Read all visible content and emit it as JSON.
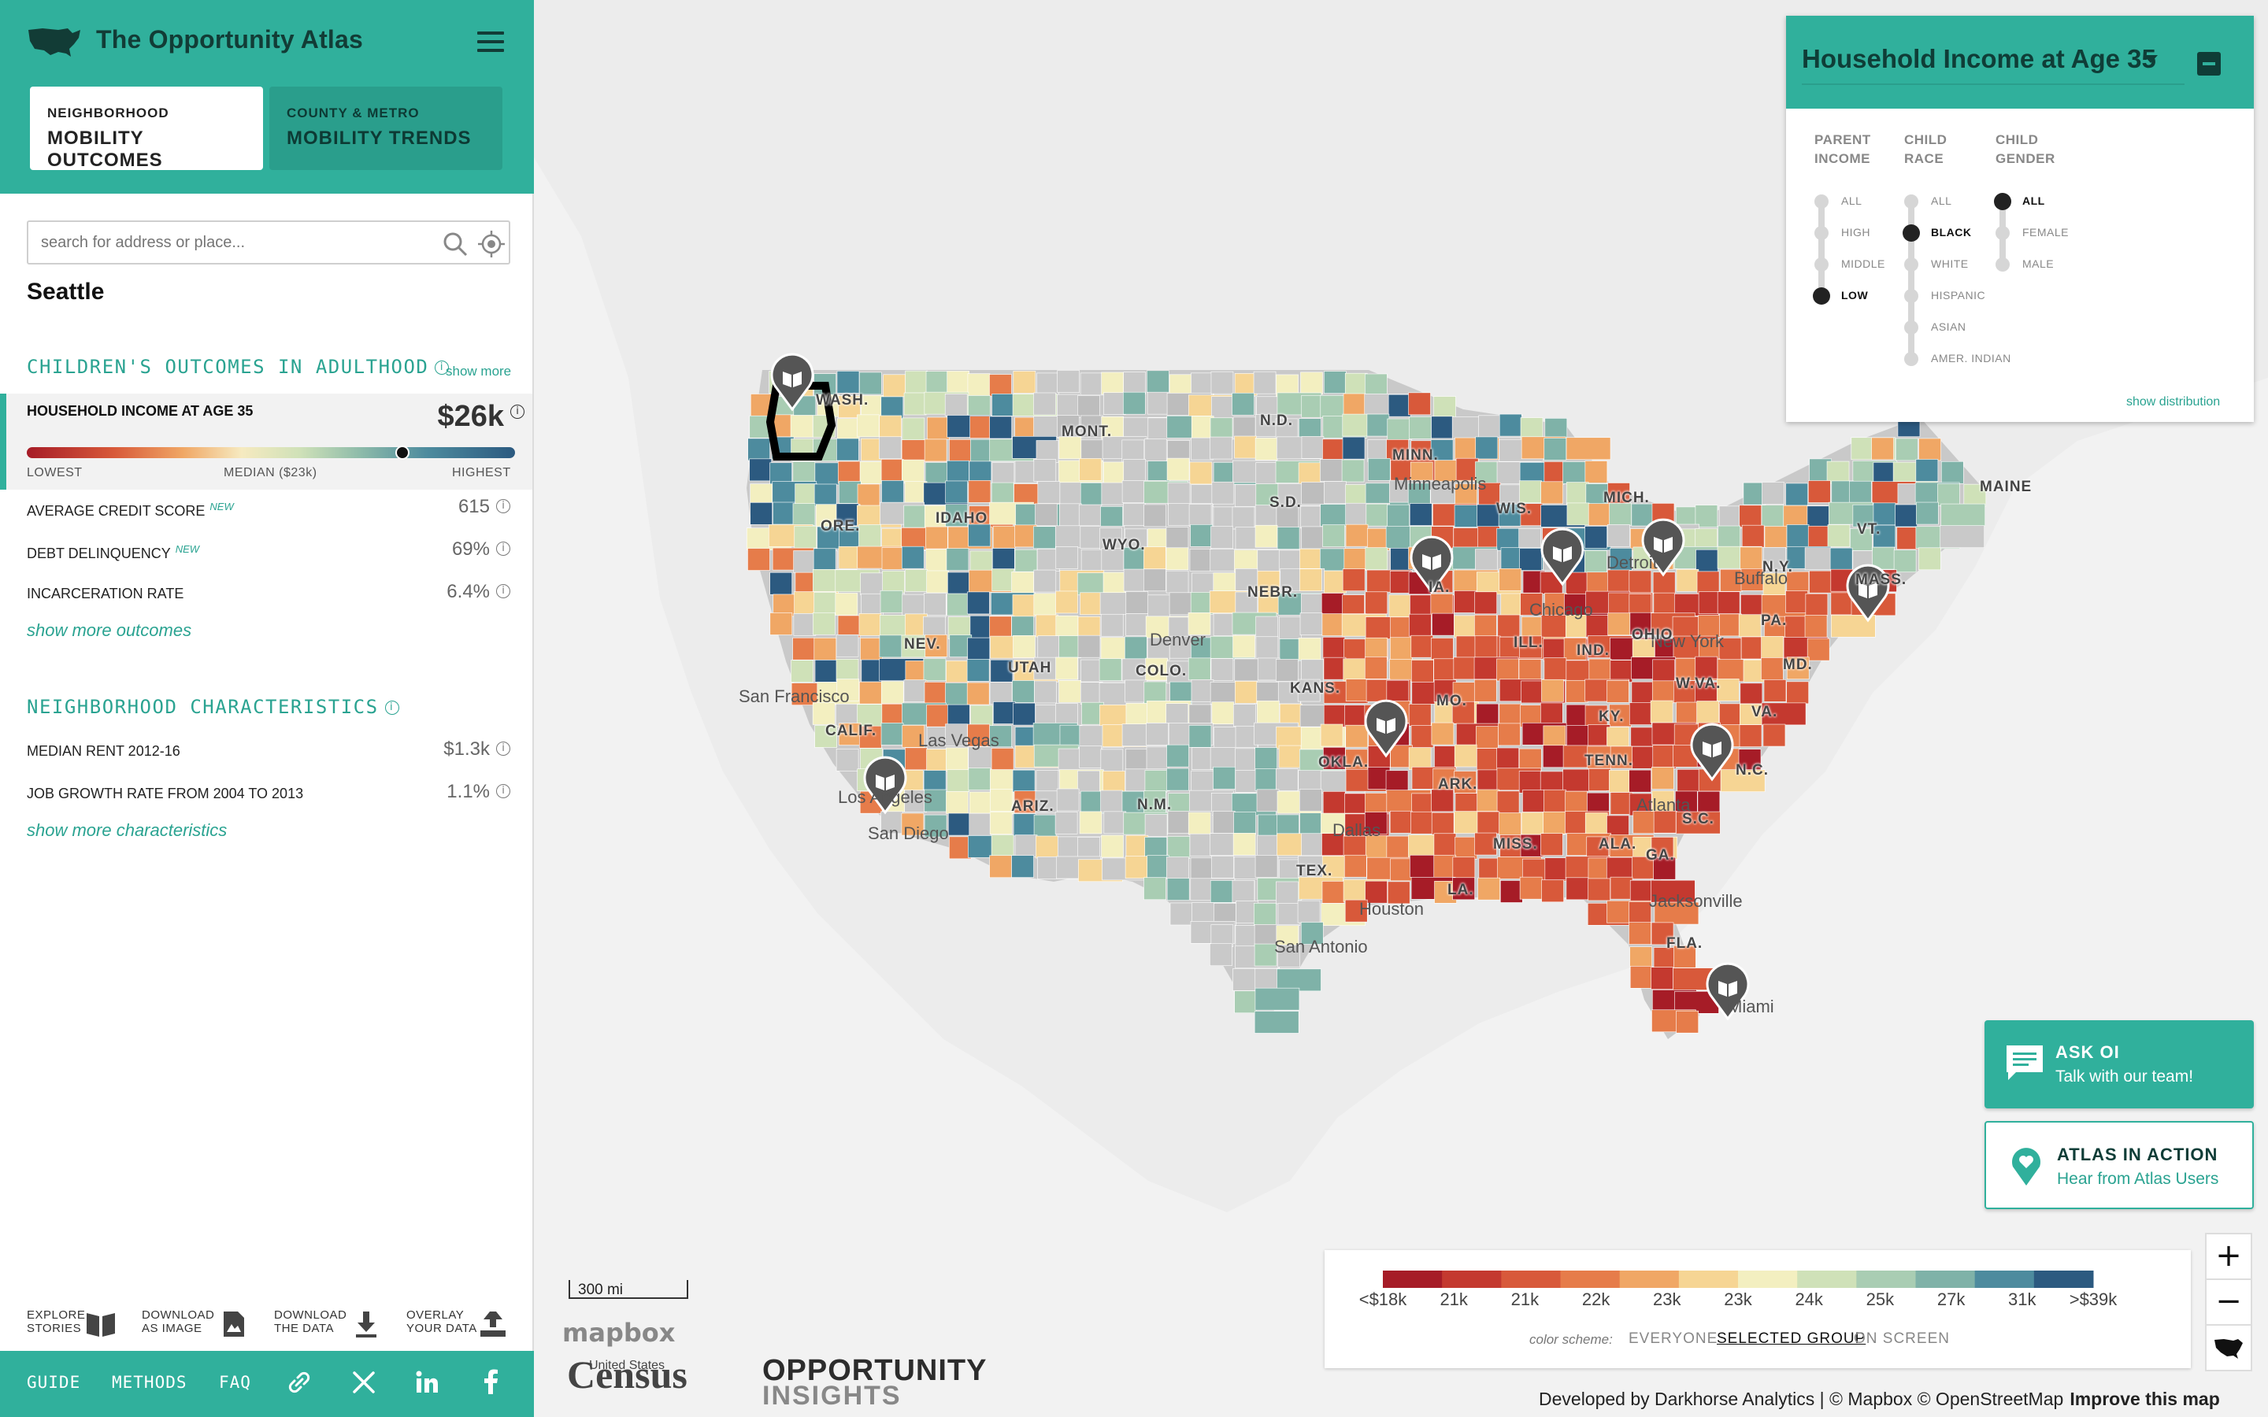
{
  "app": {
    "title": "The Opportunity Atlas",
    "tabs": [
      {
        "small": "NEIGHBORHOOD",
        "big": "MOBILITY OUTCOMES"
      },
      {
        "small": "COUNTY & METRO",
        "big": "MOBILITY TRENDS"
      }
    ]
  },
  "search": {
    "placeholder": "search for address or place..."
  },
  "place": "Seattle",
  "outcomes": {
    "title": "CHILDREN'S OUTCOMES IN ADULTHOOD",
    "show_more": "show more",
    "highlight": {
      "label": "HOUSEHOLD INCOME AT AGE 35",
      "value": "$26k",
      "low": "LOWEST",
      "median": "MEDIAN ($23k)",
      "high": "HIGHEST",
      "marker_fraction": 0.77
    },
    "items": [
      {
        "label": "AVERAGE CREDIT SCORE",
        "badge": "NEW",
        "value": "615"
      },
      {
        "label": "DEBT DELINQUENCY",
        "badge": "NEW",
        "value": "69%"
      },
      {
        "label": "INCARCERATION RATE",
        "badge": "",
        "value": "6.4%"
      }
    ],
    "show_more_link": "show more outcomes"
  },
  "characteristics": {
    "title": "NEIGHBORHOOD CHARACTERISTICS",
    "items": [
      {
        "label": "MEDIAN RENT 2012-16",
        "value": "$1.3k"
      },
      {
        "label": "JOB GROWTH RATE FROM 2004 TO 2013",
        "value": "1.1%"
      }
    ],
    "show_more_link": "show more characteristics"
  },
  "tools": [
    {
      "line1": "EXPLORE",
      "line2": "STORIES"
    },
    {
      "line1": "DOWNLOAD",
      "line2": "AS IMAGE"
    },
    {
      "line1": "DOWNLOAD",
      "line2": "THE DATA"
    },
    {
      "line1": "OVERLAY",
      "line2": "YOUR DATA"
    }
  ],
  "footer": {
    "guide": "GUIDE",
    "methods": "METHODS",
    "faq": "FAQ"
  },
  "panel": {
    "metric": "Household Income at Age 35",
    "filters": [
      {
        "head1": "PARENT",
        "head2": "INCOME",
        "options": [
          "ALL",
          "HIGH",
          "MIDDLE",
          "LOW"
        ],
        "selected": 3
      },
      {
        "head1": "CHILD",
        "head2": "RACE",
        "options": [
          "ALL",
          "BLACK",
          "WHITE",
          "HISPANIC",
          "ASIAN",
          "AMER. INDIAN"
        ],
        "selected": 1
      },
      {
        "head1": "CHILD",
        "head2": "GENDER",
        "options": [
          "ALL",
          "FEMALE",
          "MALE"
        ],
        "selected": 0
      }
    ],
    "show_distribution": "show distribution"
  },
  "help": {
    "ask": {
      "title": "ASK OI",
      "sub": "Talk with our team!"
    },
    "action": {
      "title": "ATLAS IN ACTION",
      "sub": "Hear from Atlas Users"
    }
  },
  "legend": {
    "ticks": [
      "<$18k",
      "21k",
      "21k",
      "22k",
      "23k",
      "23k",
      "24k",
      "25k",
      "27k",
      "31k",
      ">$39k"
    ],
    "colors": [
      "#a61c27",
      "#c4392f",
      "#d8593a",
      "#e67c4a",
      "#f0a765",
      "#f6d594",
      "#f3efc0",
      "#cfe1b8",
      "#a9cdb3",
      "#7fb2a8",
      "#4d8b9e",
      "#2c5a80"
    ],
    "scheme_label": "color scheme:",
    "schemes": [
      "EVERYONE",
      "SELECTED GROUP",
      "ON SCREEN"
    ],
    "selected_scheme": 1
  },
  "map": {
    "scale": "300 mi",
    "mapbox": "mapbox",
    "census_top": "United States",
    "census": "Census",
    "oi1": "OPPORTUNITY",
    "oi2": "INSIGHTS",
    "attribution": "Developed by Darkhorse Analytics | © Mapbox © OpenStreetMap",
    "improve": "Improve this map",
    "places": [
      "San Francisco",
      "Las Vegas",
      "Los Angeles",
      "San Diego",
      "Denver",
      "Dallas",
      "Houston",
      "San Antonio",
      "Minneapolis",
      "Chicago",
      "Detroit",
      "Atlanta",
      "Jacksonville",
      "Miami",
      "New York",
      "Buffalo"
    ],
    "states": [
      "WASH.",
      "ORE.",
      "CALIF.",
      "NEV.",
      "IDAHO",
      "MONT.",
      "WYO.",
      "UTAH",
      "ARIZ.",
      "COLO.",
      "N.M.",
      "N.D.",
      "S.D.",
      "NEBR.",
      "KANS.",
      "OKLA.",
      "TEX.",
      "MINN.",
      "IA.",
      "MO.",
      "ARK.",
      "LA.",
      "WIS.",
      "ILL.",
      "MICH.",
      "IND.",
      "OHIO",
      "KY.",
      "TENN.",
      "MISS.",
      "ALA.",
      "GA.",
      "FLA.",
      "S.C.",
      "N.C.",
      "VA.",
      "W.VA.",
      "PA.",
      "N.Y.",
      "MD.",
      "VT.",
      "MAINE",
      "MASS."
    ]
  }
}
